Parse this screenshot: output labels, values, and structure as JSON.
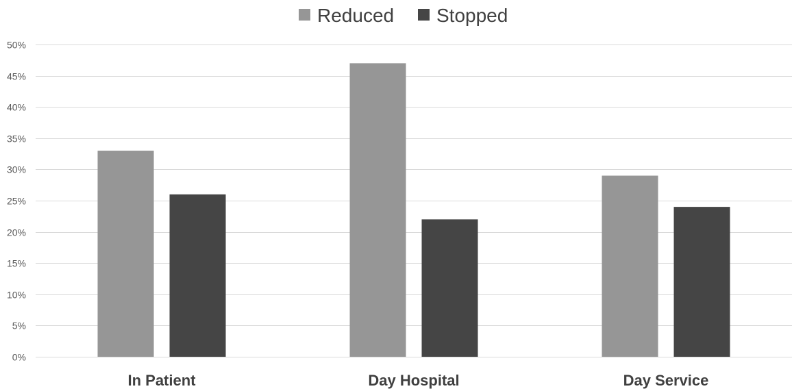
{
  "chart_data": {
    "type": "bar",
    "categories": [
      "In Patient",
      "Day Hospital",
      "Day Service"
    ],
    "series": [
      {
        "name": "Reduced",
        "values": [
          33,
          47,
          29
        ],
        "color": "#969696"
      },
      {
        "name": "Stopped",
        "values": [
          26,
          22,
          24
        ],
        "color": "#454545"
      }
    ],
    "ylim": [
      0,
      50
    ],
    "yticks": [
      0,
      5,
      10,
      15,
      20,
      25,
      30,
      35,
      40,
      45,
      50
    ],
    "ytick_labels": [
      "0%",
      "5%",
      "10%",
      "15%",
      "20%",
      "25%",
      "30%",
      "35%",
      "40%",
      "45%",
      "50%"
    ],
    "grid": true,
    "legend_position": "top-center",
    "title": "",
    "xlabel": "",
    "ylabel": ""
  }
}
